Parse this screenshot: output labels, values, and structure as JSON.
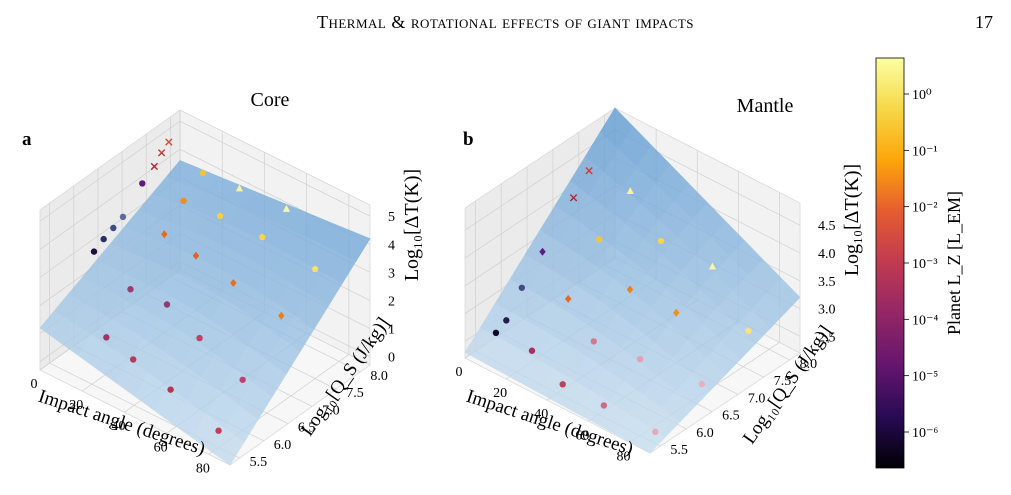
{
  "header": {
    "title": "Thermal & rotational effects of giant impacts",
    "page_number": "17"
  },
  "chart_data": [
    {
      "type": "scatter",
      "subtype": "3d-surface-scatter",
      "panel_letter": "a",
      "title": "Core",
      "xlabel": "Impact angle (degrees)",
      "ylabel": "Log₁₀[Q_S (J/kg)]",
      "zlabel": "Log₁₀[ΔT(K)]",
      "x_ticks": [
        "0",
        "20",
        "40",
        "60",
        "80"
      ],
      "y_ticks": [
        "5.5",
        "6.0",
        "6.5",
        "7.0",
        "7.5",
        "8.0"
      ],
      "z_ticks": [
        "0",
        "1",
        "2",
        "3",
        "4",
        "5"
      ],
      "xlim": [
        0,
        90
      ],
      "ylim": [
        5.3,
        8.2
      ],
      "zlim": [
        -0.3,
        5.4
      ],
      "surface": {
        "color": "#6fa3d2",
        "corners": {
          "x0_ylow": 1.2,
          "x0_yhigh": 3.6,
          "x90_ylow": -0.3,
          "x90_yhigh": 4.2
        }
      },
      "points": [
        {
          "x": 5,
          "y": 6.2,
          "z": 3.0,
          "m": "dot",
          "c": "#1a0f3d"
        },
        {
          "x": 5,
          "y": 6.4,
          "z": 3.2,
          "m": "dot",
          "c": "#28306b"
        },
        {
          "x": 5,
          "y": 6.6,
          "z": 3.35,
          "m": "dot",
          "c": "#3b4c8a"
        },
        {
          "x": 5,
          "y": 6.8,
          "z": 3.5,
          "m": "dot",
          "c": "#5a6aa3"
        },
        {
          "x": 5,
          "y": 7.2,
          "z": 4.2,
          "m": "dot",
          "c": "#5a1f7a"
        },
        {
          "x": 5,
          "y": 7.45,
          "z": 4.5,
          "m": "x",
          "c": "#b5272e"
        },
        {
          "x": 5,
          "y": 7.6,
          "z": 4.8,
          "m": "x",
          "c": "#c73a3a"
        },
        {
          "x": 5,
          "y": 7.75,
          "z": 5.0,
          "m": "x",
          "c": "#d24c36"
        },
        {
          "x": 20,
          "y": 5.8,
          "z": 1.0,
          "m": "dot",
          "c": "#a33361"
        },
        {
          "x": 20,
          "y": 6.3,
          "z": 2.1,
          "m": "dot",
          "c": "#9a3c72"
        },
        {
          "x": 20,
          "y": 7.0,
          "z": 3.2,
          "m": "diamond",
          "c": "#e46a1c"
        },
        {
          "x": 20,
          "y": 7.4,
          "z": 3.9,
          "m": "dot",
          "c": "#ef8f1d"
        },
        {
          "x": 20,
          "y": 7.8,
          "z": 4.4,
          "m": "pent",
          "c": "#f4c430"
        },
        {
          "x": 35,
          "y": 5.7,
          "z": 0.9,
          "m": "dot",
          "c": "#b33a5e"
        },
        {
          "x": 35,
          "y": 6.4,
          "z": 2.0,
          "m": "dot",
          "c": "#8e3b73"
        },
        {
          "x": 35,
          "y": 7.0,
          "z": 3.0,
          "m": "diamond",
          "c": "#e3621f"
        },
        {
          "x": 35,
          "y": 7.5,
          "z": 3.8,
          "m": "pent",
          "c": "#f7d03c"
        },
        {
          "x": 35,
          "y": 7.9,
          "z": 4.3,
          "m": "tri",
          "c": "#fbf29a"
        },
        {
          "x": 55,
          "y": 5.6,
          "z": 0.7,
          "m": "dot",
          "c": "#b8334f"
        },
        {
          "x": 55,
          "y": 6.2,
          "z": 1.8,
          "m": "dot",
          "c": "#c04069"
        },
        {
          "x": 55,
          "y": 6.9,
          "z": 2.9,
          "m": "diamond",
          "c": "#ea6d1b"
        },
        {
          "x": 55,
          "y": 7.5,
          "z": 3.8,
          "m": "pent",
          "c": "#fad34a"
        },
        {
          "x": 55,
          "y": 8.0,
          "z": 4.2,
          "m": "tri",
          "c": "#fcf6a8"
        },
        {
          "x": 80,
          "y": 5.5,
          "z": 0.3,
          "m": "dot",
          "c": "#c53c58"
        },
        {
          "x": 80,
          "y": 6.0,
          "z": 1.5,
          "m": "dot",
          "c": "#bf3f6e"
        },
        {
          "x": 80,
          "y": 6.8,
          "z": 2.8,
          "m": "diamond",
          "c": "#ef7d18"
        },
        {
          "x": 80,
          "y": 7.5,
          "z": 3.6,
          "m": "pent",
          "c": "#f9e06a"
        }
      ]
    },
    {
      "type": "scatter",
      "subtype": "3d-surface-scatter",
      "panel_letter": "b",
      "title": "Mantle",
      "xlabel": "Impact angle (degrees)",
      "ylabel": "Log₁₀[Q_S (J/kg)]",
      "zlabel": "Log₁₀[ΔT(K)]",
      "x_ticks": [
        "0",
        "20",
        "40",
        "60",
        "80"
      ],
      "y_ticks": [
        "5.5",
        "6.0",
        "6.5",
        "7.0",
        "7.5",
        "8.0"
      ],
      "z_ticks": [
        "2.5",
        "3.0",
        "3.5",
        "4.0",
        "4.5"
      ],
      "xlim": [
        0,
        90
      ],
      "ylim": [
        5.3,
        8.2
      ],
      "zlim": [
        2.2,
        4.9
      ],
      "surface": {
        "color": "#6fa3d2",
        "corners": {
          "x0_ylow": 2.3,
          "x0_yhigh": 4.9,
          "x90_ylow": 2.2,
          "x90_yhigh": 3.2
        }
      },
      "points": [
        {
          "x": 5,
          "y": 5.7,
          "z": 2.5,
          "m": "dot",
          "c": "#0c0826"
        },
        {
          "x": 5,
          "y": 5.9,
          "z": 2.6,
          "m": "dot",
          "c": "#231a4d"
        },
        {
          "x": 5,
          "y": 6.2,
          "z": 3.0,
          "m": "dot",
          "c": "#434a86"
        },
        {
          "x": 5,
          "y": 6.6,
          "z": 3.4,
          "m": "diamond",
          "c": "#5b1f82"
        },
        {
          "x": 5,
          "y": 7.2,
          "z": 4.0,
          "m": "x",
          "c": "#b02330"
        },
        {
          "x": 5,
          "y": 7.5,
          "z": 4.3,
          "m": "x",
          "c": "#cc3a3a"
        },
        {
          "x": 20,
          "y": 5.8,
          "z": 2.4,
          "m": "dot",
          "c": "#a7315c"
        },
        {
          "x": 20,
          "y": 6.5,
          "z": 2.9,
          "m": "diamond",
          "c": "#e46a1c"
        },
        {
          "x": 20,
          "y": 7.1,
          "z": 3.6,
          "m": "pent",
          "c": "#f5c33b"
        },
        {
          "x": 20,
          "y": 7.7,
          "z": 4.1,
          "m": "tri",
          "c": "#fbf19a"
        },
        {
          "x": 40,
          "y": 5.6,
          "z": 2.3,
          "m": "dot",
          "c": "#c2405c"
        },
        {
          "x": 40,
          "y": 6.2,
          "z": 2.7,
          "m": "dot",
          "c": "#d8788f"
        },
        {
          "x": 40,
          "y": 6.9,
          "z": 3.2,
          "m": "diamond",
          "c": "#ef7f18"
        },
        {
          "x": 40,
          "y": 7.5,
          "z": 3.7,
          "m": "pent",
          "c": "#f8d44a"
        },
        {
          "x": 60,
          "y": 5.6,
          "z": 2.3,
          "m": "dot",
          "c": "#cf6a86"
        },
        {
          "x": 60,
          "y": 6.3,
          "z": 2.7,
          "m": "dot",
          "c": "#e5a1b3"
        },
        {
          "x": 60,
          "y": 7.0,
          "z": 3.1,
          "m": "diamond",
          "c": "#f08f1a"
        },
        {
          "x": 60,
          "y": 7.7,
          "z": 3.5,
          "m": "tri",
          "c": "#fcf4a6"
        },
        {
          "x": 85,
          "y": 5.6,
          "z": 2.3,
          "m": "dot",
          "c": "#e8a8ba"
        },
        {
          "x": 85,
          "y": 6.5,
          "z": 2.6,
          "m": "dot",
          "c": "#e9b0c0"
        },
        {
          "x": 85,
          "y": 7.4,
          "z": 3.0,
          "m": "pent",
          "c": "#f9e27a"
        }
      ]
    }
  ],
  "colorbar": {
    "label": "Planet L_Z [L_EM]",
    "scale": "log",
    "tick_labels": [
      "10⁰",
      "10⁻¹",
      "10⁻²",
      "10⁻³",
      "10⁻⁴",
      "10⁻⁵",
      "10⁻⁶"
    ],
    "colors": [
      "#fcffa4",
      "#f6d746",
      "#fca50a",
      "#e55c30",
      "#c03a51",
      "#932667",
      "#65156e",
      "#280b54",
      "#000004"
    ]
  }
}
